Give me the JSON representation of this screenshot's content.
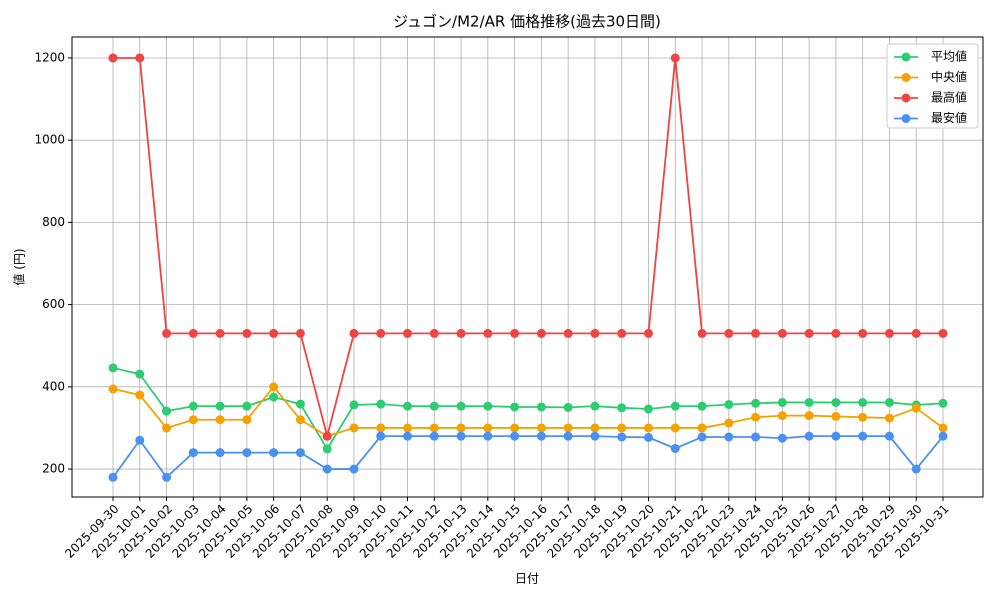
{
  "chart_data": {
    "type": "line",
    "title": "ジュゴン/M2/AR 価格推移(過去30日間)",
    "x_label": "日付",
    "y_label": "値 (円)",
    "categories": [
      "2025-09-30",
      "2025-10-01",
      "2025-10-02",
      "2025-10-03",
      "2025-10-04",
      "2025-10-05",
      "2025-10-06",
      "2025-10-07",
      "2025-10-08",
      "2025-10-09",
      "2025-10-10",
      "2025-10-11",
      "2025-10-12",
      "2025-10-13",
      "2025-10-14",
      "2025-10-15",
      "2025-10-16",
      "2025-10-17",
      "2025-10-18",
      "2025-10-19",
      "2025-10-20",
      "2025-10-21",
      "2025-10-22",
      "2025-10-23",
      "2025-10-24",
      "2025-10-25",
      "2025-10-26",
      "2025-10-27",
      "2025-10-28",
      "2025-10-29",
      "2025-10-30",
      "2025-10-31"
    ],
    "series": [
      {
        "name": "平均値",
        "color": "#2ecc71",
        "values": [
          446,
          431,
          341,
          353,
          353,
          353,
          375,
          358,
          249,
          356,
          358,
          353,
          353,
          353,
          353,
          351,
          351,
          350,
          353,
          349,
          346,
          353,
          353,
          357,
          360,
          362,
          362,
          362,
          362,
          362,
          356,
          360
        ]
      },
      {
        "name": "中央値",
        "color": "#f5a100",
        "values": [
          395,
          380,
          300,
          320,
          320,
          320,
          400,
          320,
          280,
          300,
          300,
          300,
          300,
          300,
          300,
          300,
          300,
          300,
          300,
          300,
          300,
          300,
          300,
          312,
          326,
          330,
          330,
          328,
          326,
          324,
          348,
          300
        ]
      },
      {
        "name": "最高値",
        "color": "#ef4444",
        "values": [
          1200,
          1200,
          530,
          530,
          530,
          530,
          530,
          530,
          280,
          530,
          530,
          530,
          530,
          530,
          530,
          530,
          530,
          530,
          530,
          530,
          530,
          1200,
          530,
          530,
          530,
          530,
          530,
          530,
          530,
          530,
          530,
          530
        ]
      },
      {
        "name": "最安値",
        "color": "#4a90f0",
        "values": [
          180,
          270,
          180,
          240,
          240,
          240,
          240,
          240,
          200,
          200,
          280,
          280,
          280,
          280,
          280,
          280,
          280,
          280,
          280,
          278,
          277,
          250,
          278,
          278,
          278,
          275,
          280,
          280,
          280,
          280,
          200,
          280
        ]
      }
    ],
    "ylim": [
      132,
      1251
    ],
    "yticks": [
      200,
      400,
      600,
      800,
      1000,
      1200
    ],
    "grid": true,
    "legend": "upper right"
  }
}
